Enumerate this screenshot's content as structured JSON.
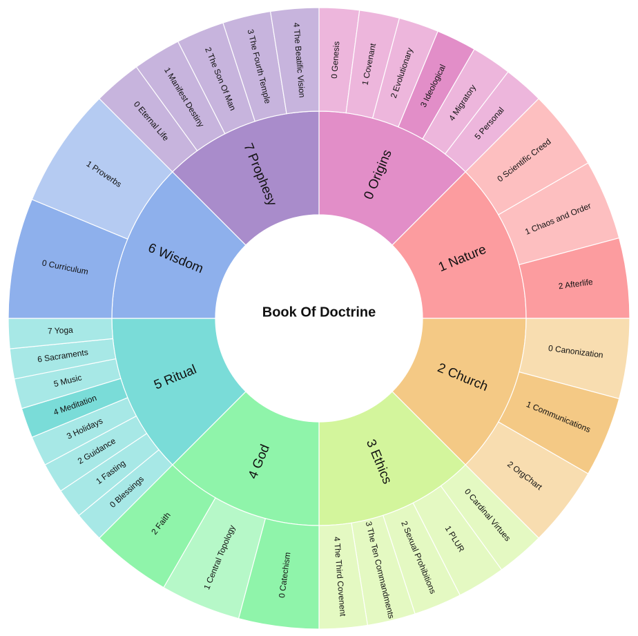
{
  "title": "Book Of Doctrine",
  "categories": [
    {
      "label": "0 Origins",
      "color": "#e28ec8",
      "childColor": "#edb6dc",
      "altColor": "#e28ec8",
      "children": [
        "0 Genesis",
        "1 Covenant",
        "2 Evolutionary",
        "3 Ideological",
        "4 Migratory",
        "5 Personal"
      ],
      "highlight": [
        3
      ]
    },
    {
      "label": "1 Nature",
      "color": "#fc9c9f",
      "childColor": "#fdbfc0",
      "altColor": "#fc9c9f",
      "children": [
        "0 Scientific Creed",
        "1 Chaos and Order",
        "2 Afterlife"
      ],
      "highlight": [
        2
      ]
    },
    {
      "label": "2 Church",
      "color": "#f4c985",
      "childColor": "#f8ddb0",
      "altColor": "#f4c985",
      "children": [
        "0 Canonization",
        "1 Communications",
        "2 OrgChart"
      ],
      "highlight": [
        1
      ]
    },
    {
      "label": "3 Ethics",
      "color": "#d3f59c",
      "childColor": "#e4f9c2",
      "altColor": "#d3f59c",
      "children": [
        "0 Cardinal Virtues",
        "1 PLUR",
        "2 Sexual Prohibitions",
        "3 The Ten Commandments",
        "4 The Third Covenent"
      ],
      "highlight": []
    },
    {
      "label": "4 God",
      "color": "#8ff4aa",
      "childColor": "#b6f8c8",
      "altColor": "#8ff4aa",
      "children": [
        "0 Catechism",
        "1 Central Topology",
        "2 Faith"
      ],
      "highlight": [
        0,
        2
      ]
    },
    {
      "label": "5 Ritual",
      "color": "#7adcd8",
      "childColor": "#a7e8e6",
      "altColor": "#7adcd8",
      "children": [
        "0 Blessings",
        "1 Fasting",
        "2 Guidance",
        "3 Holidays",
        "4 Meditation",
        "5 Music",
        "6 Sacraments",
        "7 Yoga"
      ],
      "highlight": [
        4
      ]
    },
    {
      "label": "6 Wisdom",
      "color": "#8eb0ec",
      "childColor": "#b5cbf2",
      "altColor": "#8eb0ec",
      "children": [
        "0 Curriculum",
        "1 Proverbs"
      ],
      "highlight": [
        0
      ]
    },
    {
      "label": "7 Prophesy",
      "color": "#a98ccb",
      "childColor": "#c7b4dd",
      "altColor": "#a98ccb",
      "children": [
        "0 Eternal Life",
        "1 Manifest Destiny",
        "2 The Son Of Man",
        "3 The Fourth Temple",
        "4 The Beatific Vision"
      ],
      "highlight": []
    }
  ]
}
